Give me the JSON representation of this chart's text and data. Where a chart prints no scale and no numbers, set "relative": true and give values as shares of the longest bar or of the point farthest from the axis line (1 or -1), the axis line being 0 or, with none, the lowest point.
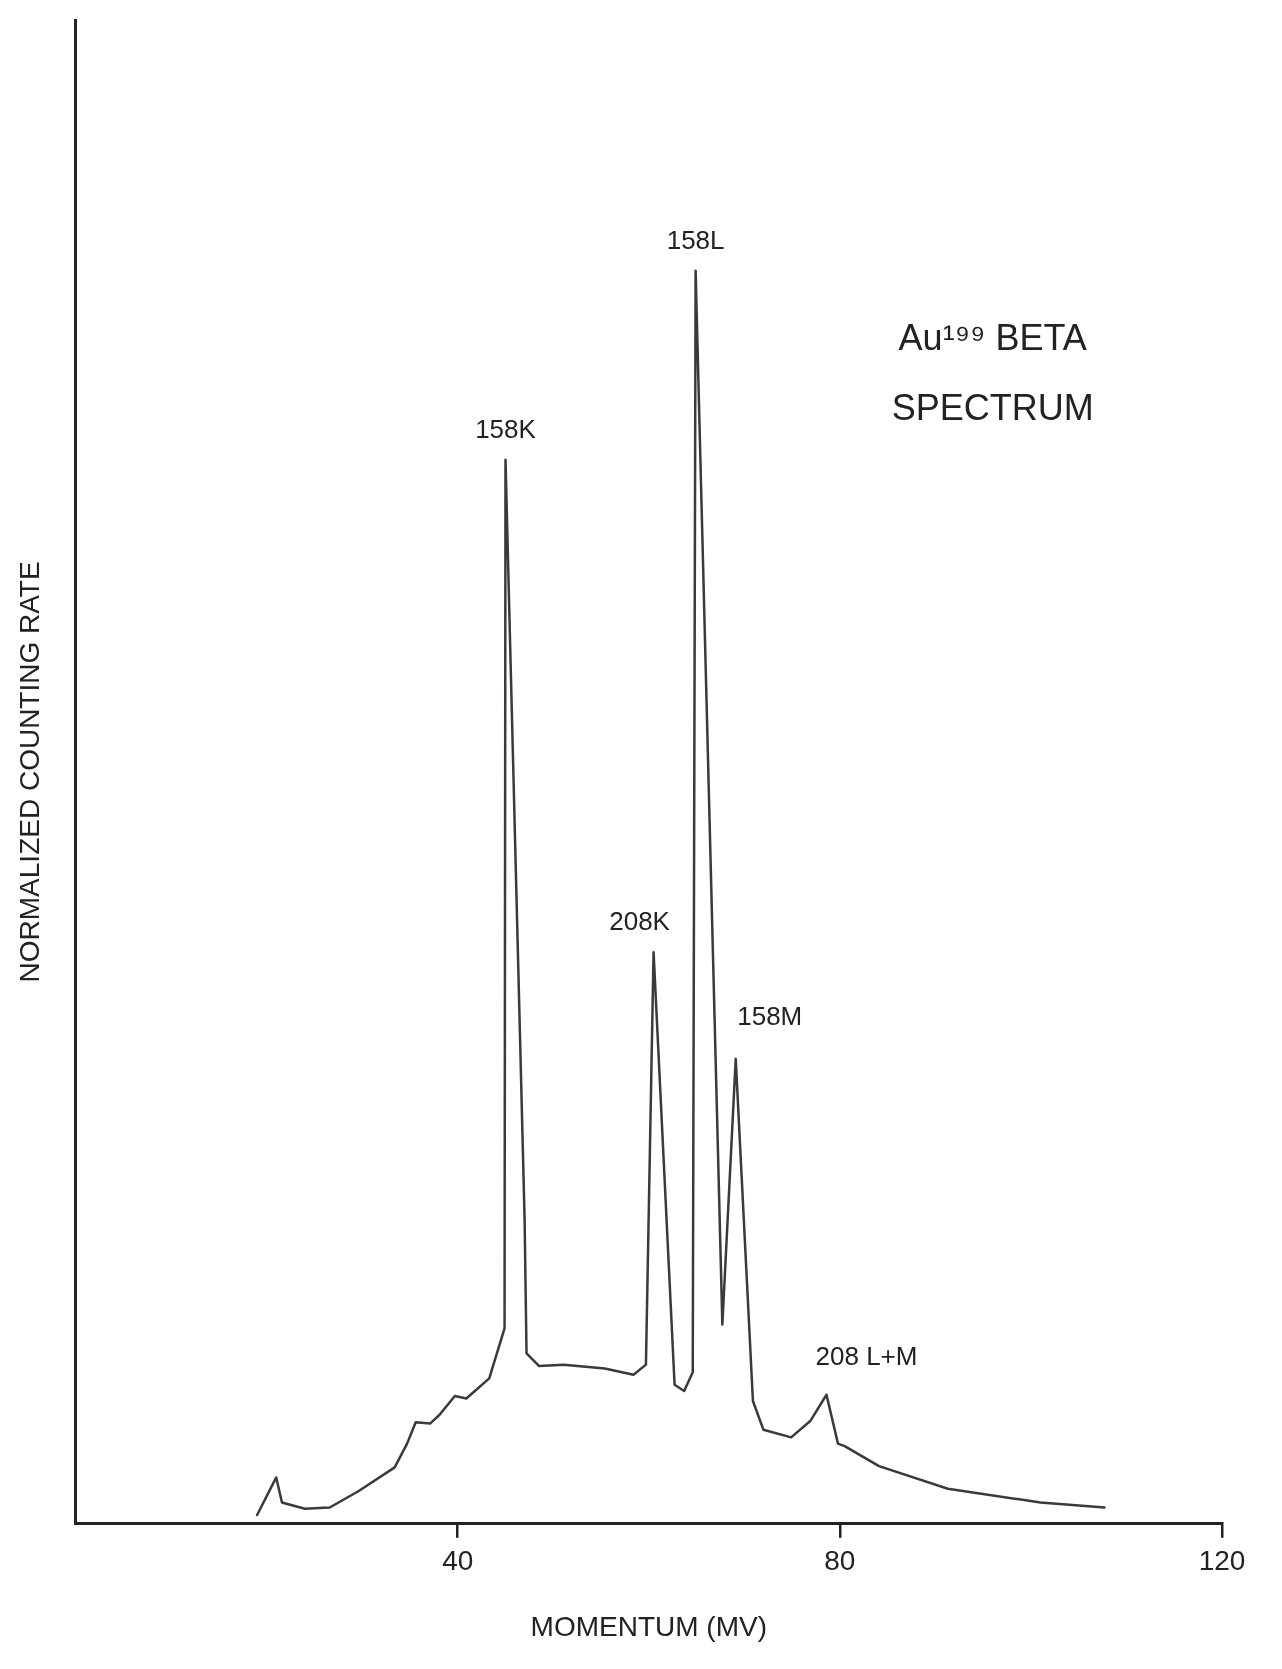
{
  "chart_data": {
    "type": "line",
    "title": "Au¹⁹⁹ BETA SPECTRUM",
    "xlabel": "MOMENTUM (MV)",
    "ylabel": "NORMALIZED COUNTING RATE",
    "relative": true,
    "xlim": [
      0,
      120
    ],
    "xticks": [
      40,
      80,
      120
    ],
    "grid": false,
    "legend": false,
    "marker": "none",
    "line_style": "solid",
    "series": [
      {
        "color": "#3a3a3a",
        "x": [
          19.0,
          21.0,
          21.6,
          24.0,
          26.6,
          29.6,
          33.4,
          34.7,
          35.6,
          37.1,
          38.1,
          39.7,
          40.9,
          43.3,
          44.9,
          45.0,
          47.0,
          47.2,
          48.5,
          51.1,
          55.4,
          58.4,
          59.7,
          60.5,
          62.7,
          63.7,
          64.6,
          64.9,
          67.7,
          69.1,
          70.9,
          72.0,
          74.9,
          76.9,
          78.6,
          79.8,
          80.5,
          84.1,
          91.3,
          101.0,
          107.7
        ],
        "values": [
          0.007,
          0.037,
          0.017,
          0.012,
          0.013,
          0.026,
          0.045,
          0.064,
          0.081,
          0.08,
          0.087,
          0.102,
          0.1,
          0.116,
          0.156,
          0.849,
          0.243,
          0.136,
          0.126,
          0.127,
          0.124,
          0.119,
          0.127,
          0.456,
          0.111,
          0.106,
          0.121,
          1.0,
          0.159,
          0.371,
          0.098,
          0.075,
          0.069,
          0.082,
          0.103,
          0.064,
          0.062,
          0.046,
          0.028,
          0.017,
          0.013
        ]
      }
    ],
    "annotations": [
      {
        "text": "158K",
        "x": 45.0,
        "y": 0.849
      },
      {
        "text": "158L",
        "x": 64.9,
        "y": 1.0
      },
      {
        "text": "208K",
        "x": 60.5,
        "y": 0.456
      },
      {
        "text": "158M",
        "x": 69.1,
        "y": 0.371
      },
      {
        "text": "208 L+M",
        "x": 78.6,
        "y": 0.103
      }
    ]
  }
}
